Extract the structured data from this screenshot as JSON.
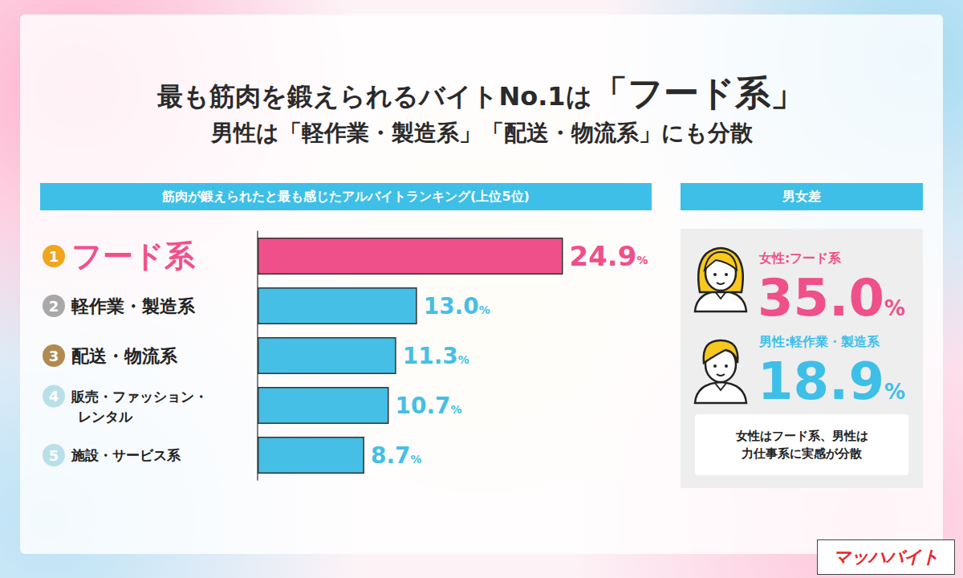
{
  "chart_data": {
    "type": "bar",
    "orientation": "horizontal",
    "title": "最も筋肉を鍛えられるバイトNo.1は「フード系」",
    "subtitle": "男性は「軽作業・製造系」「配送・物流系」にも分散",
    "panel_title": "筋肉が鍛えられたと最も感じたアルバイトランキング(上位5位)",
    "ranks": [
      1,
      2,
      3,
      4,
      5
    ],
    "categories": [
      "フード系",
      "軽作業・製造系",
      "配送・物流系",
      "販売・ファッション・レンタル",
      "施設・サービス系"
    ],
    "values": [
      24.9,
      13.0,
      11.3,
      10.7,
      8.7
    ],
    "value_labels": [
      "24.9%",
      "13.0%",
      "11.3%",
      "10.7%",
      "8.7%"
    ],
    "colors": [
      "#f0508a",
      "#45bfe5",
      "#45bfe5",
      "#45bfe5",
      "#45bfe5"
    ],
    "xlim": [
      0,
      32
    ],
    "grid": false,
    "data_labels": true,
    "tick_labels": "y"
  },
  "side_panel": {
    "title": "男女差",
    "items": [
      {
        "label": "女性:フード系",
        "value": "35.0%",
        "color": "#f0508a"
      },
      {
        "label": "男性:軽作業・製造系",
        "value": "18.9%",
        "color": "#3ebfe8"
      }
    ],
    "note": "女性はフード系、男性は力仕事系に実感が分散"
  },
  "brand": "マッハバイト"
}
